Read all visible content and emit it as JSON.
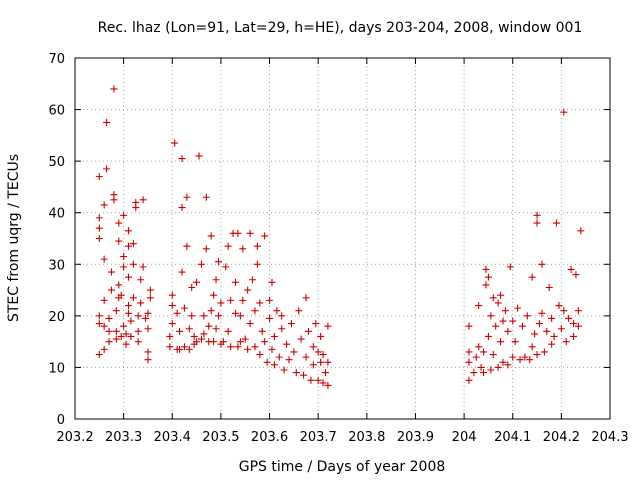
{
  "chart_data": {
    "type": "scatter",
    "title": "Rec. lhaz (Lon=91, Lat=29, h=HE), days 203-204, 2008, window 001",
    "xlabel": "GPS time / Days of year 2008",
    "ylabel": "STEC from uqrg / TECUs",
    "xlim": [
      203.2,
      204.3
    ],
    "ylim": [
      0,
      70
    ],
    "x_ticks": [
      203.2,
      203.3,
      203.4,
      203.5,
      203.6,
      203.7,
      203.8,
      203.9,
      204,
      204.1,
      204.2,
      204.3
    ],
    "x_tick_labels": [
      "203.2",
      "203.3",
      "203.4",
      "203.5",
      "203.6",
      "203.7",
      "203.8",
      "203.9",
      "204",
      "204.1",
      "204.2",
      "204.3"
    ],
    "y_ticks": [
      0,
      10,
      20,
      30,
      40,
      50,
      60,
      70
    ],
    "y_tick_labels": [
      "0",
      "10",
      "20",
      "30",
      "40",
      "50",
      "60",
      "70"
    ],
    "grid": true,
    "marker": "plus",
    "color": "#cc0000",
    "series": [
      {
        "name": "",
        "points": [
          [
            203.25,
            12.5
          ],
          [
            203.25,
            18.5
          ],
          [
            203.25,
            20
          ],
          [
            203.25,
            35
          ],
          [
            203.25,
            37
          ],
          [
            203.25,
            39
          ],
          [
            203.25,
            47
          ],
          [
            203.26,
            13.5
          ],
          [
            203.26,
            18
          ],
          [
            203.26,
            23
          ],
          [
            203.26,
            31
          ],
          [
            203.26,
            41.5
          ],
          [
            203.265,
            48.5
          ],
          [
            203.265,
            57.5
          ],
          [
            203.27,
            15
          ],
          [
            203.27,
            17
          ],
          [
            203.27,
            19.5
          ],
          [
            203.275,
            25
          ],
          [
            203.275,
            28.5
          ],
          [
            203.28,
            42.5
          ],
          [
            203.28,
            43.5
          ],
          [
            203.28,
            64
          ],
          [
            203.285,
            15.5
          ],
          [
            203.285,
            17
          ],
          [
            203.285,
            21
          ],
          [
            203.29,
            23.5
          ],
          [
            203.29,
            26
          ],
          [
            203.29,
            34.5
          ],
          [
            203.29,
            38
          ],
          [
            203.295,
            16
          ],
          [
            203.295,
            24
          ],
          [
            203.3,
            18
          ],
          [
            203.3,
            29.5
          ],
          [
            203.3,
            31.5
          ],
          [
            203.3,
            39.5
          ],
          [
            203.305,
            14.5
          ],
          [
            203.305,
            16.5
          ],
          [
            203.31,
            20.5
          ],
          [
            203.31,
            22
          ],
          [
            203.31,
            27.5
          ],
          [
            203.31,
            33.5
          ],
          [
            203.31,
            36.5
          ],
          [
            203.315,
            16
          ],
          [
            203.315,
            19
          ],
          [
            203.32,
            23.5
          ],
          [
            203.32,
            30
          ],
          [
            203.32,
            34
          ],
          [
            203.325,
            41
          ],
          [
            203.325,
            42
          ],
          [
            203.33,
            15
          ],
          [
            203.33,
            17
          ],
          [
            203.33,
            20
          ],
          [
            203.335,
            22.5
          ],
          [
            203.335,
            27
          ],
          [
            203.34,
            29.5
          ],
          [
            203.34,
            42.5
          ],
          [
            203.345,
            19.5
          ],
          [
            203.35,
            11.5
          ],
          [
            203.35,
            13
          ],
          [
            203.35,
            17.5
          ],
          [
            203.35,
            20.5
          ],
          [
            203.355,
            23.5
          ],
          [
            203.355,
            25
          ],
          [
            203.395,
            14
          ],
          [
            203.395,
            16
          ],
          [
            203.4,
            18.5
          ],
          [
            203.4,
            22
          ],
          [
            203.4,
            24
          ],
          [
            203.405,
            53.5
          ],
          [
            203.41,
            13.5
          ],
          [
            203.41,
            20.5
          ],
          [
            203.415,
            13.5
          ],
          [
            203.415,
            17
          ],
          [
            203.42,
            28.5
          ],
          [
            203.42,
            41
          ],
          [
            203.42,
            50.5
          ],
          [
            203.425,
            14
          ],
          [
            203.425,
            21.5
          ],
          [
            203.43,
            33.5
          ],
          [
            203.43,
            43
          ],
          [
            203.435,
            13.5
          ],
          [
            203.435,
            17.5
          ],
          [
            203.44,
            20
          ],
          [
            203.44,
            25.5
          ],
          [
            203.445,
            14.5
          ],
          [
            203.445,
            16
          ],
          [
            203.45,
            15
          ],
          [
            203.45,
            26.5
          ],
          [
            203.455,
            51
          ],
          [
            203.46,
            15.5
          ],
          [
            203.46,
            30
          ],
          [
            203.465,
            16.5
          ],
          [
            203.465,
            20
          ],
          [
            203.47,
            33
          ],
          [
            203.47,
            43
          ],
          [
            203.475,
            15
          ],
          [
            203.475,
            18
          ],
          [
            203.48,
            21
          ],
          [
            203.48,
            35.5
          ],
          [
            203.485,
            15
          ],
          [
            203.485,
            24
          ],
          [
            203.49,
            17.5
          ],
          [
            203.49,
            27
          ],
          [
            203.495,
            20
          ],
          [
            203.495,
            30.5
          ],
          [
            203.5,
            14.5
          ],
          [
            203.5,
            22.5
          ],
          [
            203.505,
            15
          ],
          [
            203.51,
            29.5
          ],
          [
            203.515,
            17
          ],
          [
            203.515,
            33.5
          ],
          [
            203.52,
            14
          ],
          [
            203.52,
            23
          ],
          [
            203.525,
            36
          ],
          [
            203.53,
            20.5
          ],
          [
            203.53,
            26.5
          ],
          [
            203.535,
            14
          ],
          [
            203.535,
            36
          ],
          [
            203.54,
            15
          ],
          [
            203.54,
            20
          ],
          [
            203.545,
            23
          ],
          [
            203.545,
            33
          ],
          [
            203.55,
            15.5
          ],
          [
            203.555,
            13.5
          ],
          [
            203.555,
            25
          ],
          [
            203.56,
            18.5
          ],
          [
            203.56,
            36
          ],
          [
            203.565,
            27
          ],
          [
            203.57,
            14
          ],
          [
            203.57,
            21
          ],
          [
            203.575,
            30
          ],
          [
            203.575,
            33.5
          ],
          [
            203.58,
            12.5
          ],
          [
            203.58,
            22.5
          ],
          [
            203.585,
            17
          ],
          [
            203.59,
            35.5
          ],
          [
            203.59,
            15
          ],
          [
            203.595,
            11
          ],
          [
            203.6,
            19.5
          ],
          [
            203.6,
            23
          ],
          [
            203.605,
            13.5
          ],
          [
            203.605,
            26.5
          ],
          [
            203.61,
            10.5
          ],
          [
            203.61,
            16
          ],
          [
            203.615,
            21
          ],
          [
            203.62,
            12
          ],
          [
            203.625,
            17.5
          ],
          [
            203.625,
            20
          ],
          [
            203.63,
            9.5
          ],
          [
            203.635,
            14.5
          ],
          [
            203.64,
            11.5
          ],
          [
            203.645,
            18.5
          ],
          [
            203.65,
            13
          ],
          [
            203.655,
            9
          ],
          [
            203.66,
            21
          ],
          [
            203.665,
            15.5
          ],
          [
            203.67,
            8.5
          ],
          [
            203.675,
            12
          ],
          [
            203.675,
            23.5
          ],
          [
            203.68,
            17
          ],
          [
            203.685,
            7.5
          ],
          [
            203.69,
            14
          ],
          [
            203.69,
            10.5
          ],
          [
            203.695,
            18.5
          ],
          [
            203.7,
            7.5
          ],
          [
            203.7,
            13
          ],
          [
            203.705,
            11
          ],
          [
            203.705,
            16
          ],
          [
            203.71,
            7
          ],
          [
            203.71,
            12.5
          ],
          [
            203.715,
            9
          ],
          [
            203.72,
            6.5
          ],
          [
            203.72,
            11
          ],
          [
            203.72,
            18
          ],
          [
            204.01,
            7.5
          ],
          [
            204.01,
            11
          ],
          [
            204.01,
            13
          ],
          [
            204.01,
            18
          ],
          [
            204.02,
            9
          ],
          [
            204.025,
            12
          ],
          [
            204.03,
            14
          ],
          [
            204.03,
            22
          ],
          [
            204.035,
            10
          ],
          [
            204.04,
            9
          ],
          [
            204.04,
            13
          ],
          [
            204.045,
            26
          ],
          [
            204.045,
            29
          ],
          [
            204.05,
            16
          ],
          [
            204.05,
            27.5
          ],
          [
            204.055,
            9.5
          ],
          [
            204.055,
            20
          ],
          [
            204.06,
            12.5
          ],
          [
            204.06,
            23.5
          ],
          [
            204.065,
            18
          ],
          [
            204.07,
            10
          ],
          [
            204.07,
            22.5
          ],
          [
            204.075,
            15
          ],
          [
            204.075,
            24
          ],
          [
            204.08,
            11
          ],
          [
            204.08,
            19
          ],
          [
            204.085,
            21
          ],
          [
            204.09,
            10.5
          ],
          [
            204.09,
            17
          ],
          [
            204.095,
            29.5
          ],
          [
            204.1,
            12
          ],
          [
            204.1,
            19
          ],
          [
            204.105,
            15
          ],
          [
            204.11,
            21.5
          ],
          [
            204.115,
            11.5
          ],
          [
            204.12,
            18
          ],
          [
            204.125,
            12
          ],
          [
            204.13,
            20
          ],
          [
            204.135,
            11.5
          ],
          [
            204.14,
            14
          ],
          [
            204.14,
            27.5
          ],
          [
            204.145,
            16.5
          ],
          [
            204.15,
            12.5
          ],
          [
            204.15,
            38
          ],
          [
            204.15,
            39.5
          ],
          [
            204.155,
            18.5
          ],
          [
            204.16,
            20.5
          ],
          [
            204.16,
            30
          ],
          [
            204.165,
            13
          ],
          [
            204.17,
            17
          ],
          [
            204.175,
            25.5
          ],
          [
            204.18,
            14.5
          ],
          [
            204.18,
            19.5
          ],
          [
            204.185,
            16
          ],
          [
            204.19,
            38
          ],
          [
            204.195,
            22
          ],
          [
            204.2,
            17.5
          ],
          [
            204.205,
            21
          ],
          [
            204.205,
            59.5
          ],
          [
            204.21,
            15
          ],
          [
            204.215,
            19.5
          ],
          [
            204.22,
            29
          ],
          [
            204.225,
            16
          ],
          [
            204.225,
            18.5
          ],
          [
            204.23,
            28
          ],
          [
            204.235,
            18
          ],
          [
            204.235,
            21
          ],
          [
            204.24,
            36.5
          ]
        ]
      }
    ]
  }
}
